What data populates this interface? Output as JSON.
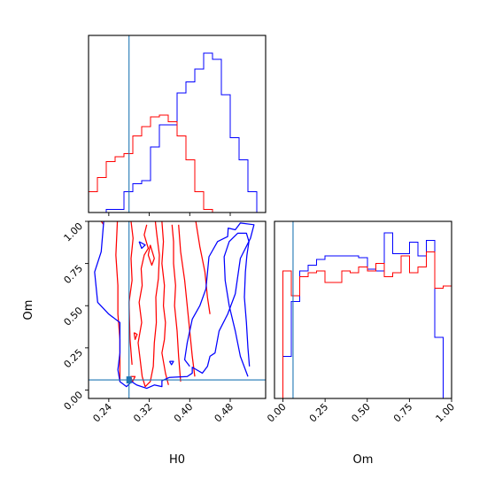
{
  "chart_data": {
    "type": "corner",
    "parameters": [
      "H0",
      "Om"
    ],
    "xlabel_h0": "H0",
    "xlabel_om": "Om",
    "ylabel_om": "Om",
    "colors": {
      "series_a": "#0000ff",
      "series_b": "#ff0000",
      "truth": "#1f77b4"
    },
    "truth": {
      "H0": 0.28,
      "Om": 0.06
    },
    "h0_ticks": [
      "0.24",
      "0.32",
      "0.40",
      "0.48"
    ],
    "h0_tick_values": [
      0.24,
      0.32,
      0.4,
      0.48
    ],
    "om_ticks": [
      "0.00",
      "0.25",
      "0.50",
      "0.75",
      "1.00"
    ],
    "om_tick_values": [
      0.0,
      0.25,
      0.5,
      0.75,
      1.0
    ],
    "h0_range": [
      0.2,
      0.55
    ],
    "om_range": [
      -0.05,
      1.0
    ],
    "h0_hist": {
      "edges": [
        0.2,
        0.2175,
        0.235,
        0.2525,
        0.27,
        0.2875,
        0.305,
        0.3225,
        0.34,
        0.3575,
        0.375,
        0.3925,
        0.41,
        0.4275,
        0.445,
        0.4625,
        0.48,
        0.4975,
        0.515,
        0.5325,
        0.55
      ],
      "blue": [
        0,
        0,
        0.02,
        0.02,
        0.13,
        0.18,
        0.2,
        0.41,
        0.55,
        0.55,
        0.75,
        0.82,
        0.9,
        1.0,
        0.96,
        0.74,
        0.47,
        0.33,
        0.13,
        0.0
      ],
      "red": [
        0.13,
        0.22,
        0.32,
        0.35,
        0.37,
        0.48,
        0.54,
        0.6,
        0.61,
        0.57,
        0.48,
        0.33,
        0.13,
        0.02,
        0.0,
        0.0,
        0.0,
        0.0,
        0.0,
        0.0
      ]
    },
    "om_hist": {
      "edges": [
        -0.05,
        0.0,
        0.05,
        0.1,
        0.15,
        0.2,
        0.25,
        0.3,
        0.35,
        0.4,
        0.45,
        0.5,
        0.55,
        0.6,
        0.65,
        0.7,
        0.75,
        0.8,
        0.85,
        0.9,
        0.95,
        1.0
      ],
      "blue": [
        0.0,
        0.22,
        0.51,
        0.67,
        0.7,
        0.73,
        0.75,
        0.75,
        0.75,
        0.75,
        0.74,
        0.68,
        0.67,
        0.87,
        0.76,
        0.76,
        0.82,
        0.75,
        0.83,
        0.32,
        0.0
      ],
      "red": [
        0.0,
        0.67,
        0.54,
        0.64,
        0.66,
        0.67,
        0.61,
        0.61,
        0.67,
        0.66,
        0.69,
        0.67,
        0.71,
        0.64,
        0.66,
        0.75,
        0.66,
        0.69,
        0.77,
        0.58,
        0.59
      ]
    },
    "contours": {
      "blue": [
        [
          [
            0.23,
            1.0
          ],
          [
            0.225,
            0.82
          ],
          [
            0.212,
            0.7
          ],
          [
            0.218,
            0.52
          ],
          [
            0.24,
            0.45
          ],
          [
            0.262,
            0.4
          ],
          [
            0.262,
            0.22
          ],
          [
            0.258,
            0.12
          ],
          [
            0.262,
            0.05
          ],
          [
            0.275,
            0.02
          ],
          [
            0.285,
            0.05
          ],
          [
            0.295,
            0.03
          ],
          [
            0.315,
            0.01
          ],
          [
            0.33,
            0.03
          ],
          [
            0.345,
            0.02
          ],
          [
            0.345,
            0.055
          ],
          [
            0.36,
            0.075
          ],
          [
            0.395,
            0.08
          ],
          [
            0.405,
            0.1
          ],
          [
            0.405,
            0.135
          ],
          [
            0.425,
            0.1
          ],
          [
            0.435,
            0.14
          ],
          [
            0.44,
            0.2
          ],
          [
            0.45,
            0.22
          ],
          [
            0.458,
            0.35
          ],
          [
            0.475,
            0.45
          ],
          [
            0.49,
            0.57
          ],
          [
            0.5,
            0.78
          ],
          [
            0.52,
            0.9
          ],
          [
            0.527,
            0.98
          ],
          [
            0.5,
            0.99
          ],
          [
            0.49,
            0.95
          ],
          [
            0.476,
            0.96
          ],
          [
            0.475,
            0.91
          ],
          [
            0.455,
            0.88
          ],
          [
            0.438,
            0.79
          ],
          [
            0.432,
            0.6
          ],
          [
            0.42,
            0.5
          ],
          [
            0.405,
            0.42
          ],
          [
            0.395,
            0.28
          ],
          [
            0.39,
            0.18
          ],
          [
            0.4,
            0.14
          ]
        ],
        [
          [
            0.515,
            0.08
          ],
          [
            0.5,
            0.2
          ],
          [
            0.49,
            0.35
          ],
          [
            0.478,
            0.5
          ],
          [
            0.47,
            0.65
          ],
          [
            0.468,
            0.79
          ],
          [
            0.478,
            0.88
          ],
          [
            0.495,
            0.93
          ],
          [
            0.512,
            0.93
          ],
          [
            0.517,
            0.88
          ],
          [
            0.513,
            0.8
          ],
          [
            0.51,
            0.7
          ],
          [
            0.508,
            0.55
          ],
          [
            0.512,
            0.4
          ],
          [
            0.515,
            0.25
          ],
          [
            0.518,
            0.14
          ]
        ],
        [
          [
            0.3,
            0.88
          ],
          [
            0.305,
            0.84
          ],
          [
            0.312,
            0.86
          ],
          [
            0.3,
            0.88
          ]
        ],
        [
          [
            0.36,
            0.17
          ],
          [
            0.364,
            0.15
          ],
          [
            0.368,
            0.17
          ],
          [
            0.36,
            0.17
          ]
        ]
      ],
      "red": [
        [
          [
            0.225,
            1.0
          ],
          [
            0.23,
            0.98
          ]
        ],
        [
          [
            0.257,
            1.0
          ],
          [
            0.254,
            0.8
          ],
          [
            0.258,
            0.62
          ],
          [
            0.258,
            0.45
          ],
          [
            0.262,
            0.3
          ],
          [
            0.262,
            0.05
          ]
        ],
        [
          [
            0.284,
            1.0
          ],
          [
            0.288,
            0.9
          ],
          [
            0.284,
            0.78
          ],
          [
            0.286,
            0.65
          ],
          [
            0.28,
            0.52
          ],
          [
            0.282,
            0.3
          ],
          [
            0.286,
            0.15
          ]
        ],
        [
          [
            0.315,
            0.98
          ],
          [
            0.31,
            0.92
          ],
          [
            0.318,
            0.84
          ],
          [
            0.31,
            0.8
          ],
          [
            0.304,
            0.72
          ],
          [
            0.306,
            0.62
          ],
          [
            0.3,
            0.52
          ],
          [
            0.305,
            0.4
          ],
          [
            0.298,
            0.28
          ],
          [
            0.302,
            0.18
          ],
          [
            0.306,
            0.08
          ],
          [
            0.312,
            0.02
          ],
          [
            0.322,
            0.05
          ],
          [
            0.328,
            0.14
          ],
          [
            0.33,
            0.28
          ],
          [
            0.334,
            0.4
          ],
          [
            0.333,
            0.55
          ],
          [
            0.338,
            0.66
          ],
          [
            0.34,
            0.8
          ],
          [
            0.335,
            0.92
          ],
          [
            0.332,
            1.0
          ]
        ],
        [
          [
            0.345,
            1.0
          ],
          [
            0.348,
            0.88
          ],
          [
            0.345,
            0.75
          ],
          [
            0.35,
            0.62
          ],
          [
            0.348,
            0.5
          ],
          [
            0.352,
            0.4
          ],
          [
            0.35,
            0.3
          ],
          [
            0.345,
            0.22
          ],
          [
            0.352,
            0.1
          ],
          [
            0.358,
            0.03
          ]
        ],
        [
          [
            0.365,
            0.98
          ],
          [
            0.368,
            0.88
          ],
          [
            0.368,
            0.75
          ],
          [
            0.372,
            0.62
          ],
          [
            0.37,
            0.5
          ],
          [
            0.375,
            0.35
          ],
          [
            0.378,
            0.2
          ],
          [
            0.382,
            0.05
          ]
        ],
        [
          [
            0.378,
            0.98
          ],
          [
            0.382,
            0.82
          ],
          [
            0.39,
            0.65
          ],
          [
            0.395,
            0.5
          ],
          [
            0.4,
            0.35
          ],
          [
            0.405,
            0.2
          ],
          [
            0.41,
            0.08
          ]
        ],
        [
          [
            0.412,
            1.0
          ],
          [
            0.42,
            0.85
          ],
          [
            0.43,
            0.7
          ],
          [
            0.435,
            0.55
          ],
          [
            0.44,
            0.45
          ]
        ],
        [
          [
            0.322,
            0.86
          ],
          [
            0.318,
            0.8
          ],
          [
            0.325,
            0.74
          ],
          [
            0.33,
            0.78
          ],
          [
            0.322,
            0.86
          ]
        ],
        [
          [
            0.29,
            0.34
          ],
          [
            0.292,
            0.3
          ],
          [
            0.296,
            0.33
          ],
          [
            0.29,
            0.34
          ]
        ],
        [
          [
            0.283,
            0.08
          ],
          [
            0.287,
            0.05
          ],
          [
            0.292,
            0.08
          ],
          [
            0.283,
            0.08
          ]
        ]
      ]
    }
  }
}
